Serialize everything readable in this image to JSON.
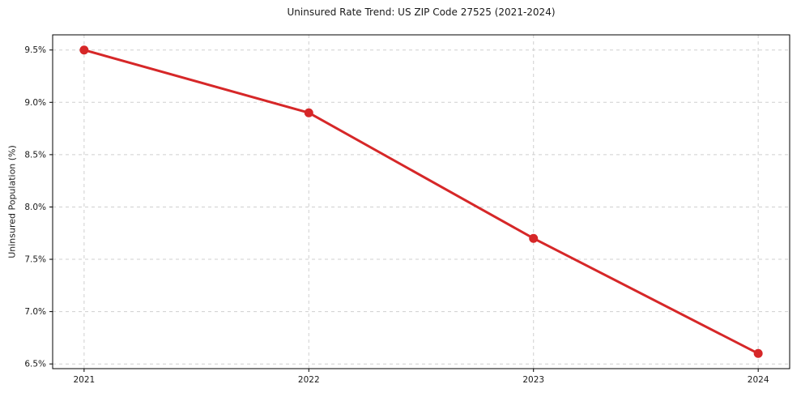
{
  "chart_data": {
    "type": "line",
    "title": "Uninsured Rate Trend: US ZIP Code 27525 (2021-2024)",
    "xlabel": "",
    "ylabel": "Uninsured Population (%)",
    "x": [
      2021,
      2022,
      2023,
      2024
    ],
    "values": [
      9.5,
      8.9,
      7.7,
      6.6
    ],
    "xticks": [
      2021,
      2022,
      2023,
      2024
    ],
    "xtick_labels": [
      "2021",
      "2022",
      "2023",
      "2024"
    ],
    "yticks": [
      6.5,
      7.0,
      7.5,
      8.0,
      8.5,
      9.0,
      9.5
    ],
    "ytick_labels": [
      "6.5%",
      "7.0%",
      "7.5%",
      "8.0%",
      "8.5%",
      "9.0%",
      "9.5%"
    ],
    "xlim": [
      2020.86,
      2024.14
    ],
    "ylim": [
      6.455,
      9.645
    ],
    "grid": true,
    "legend": false,
    "line_color": "#d62728",
    "marker": "circle",
    "marker_radius": 5.5,
    "line_width": 3
  }
}
